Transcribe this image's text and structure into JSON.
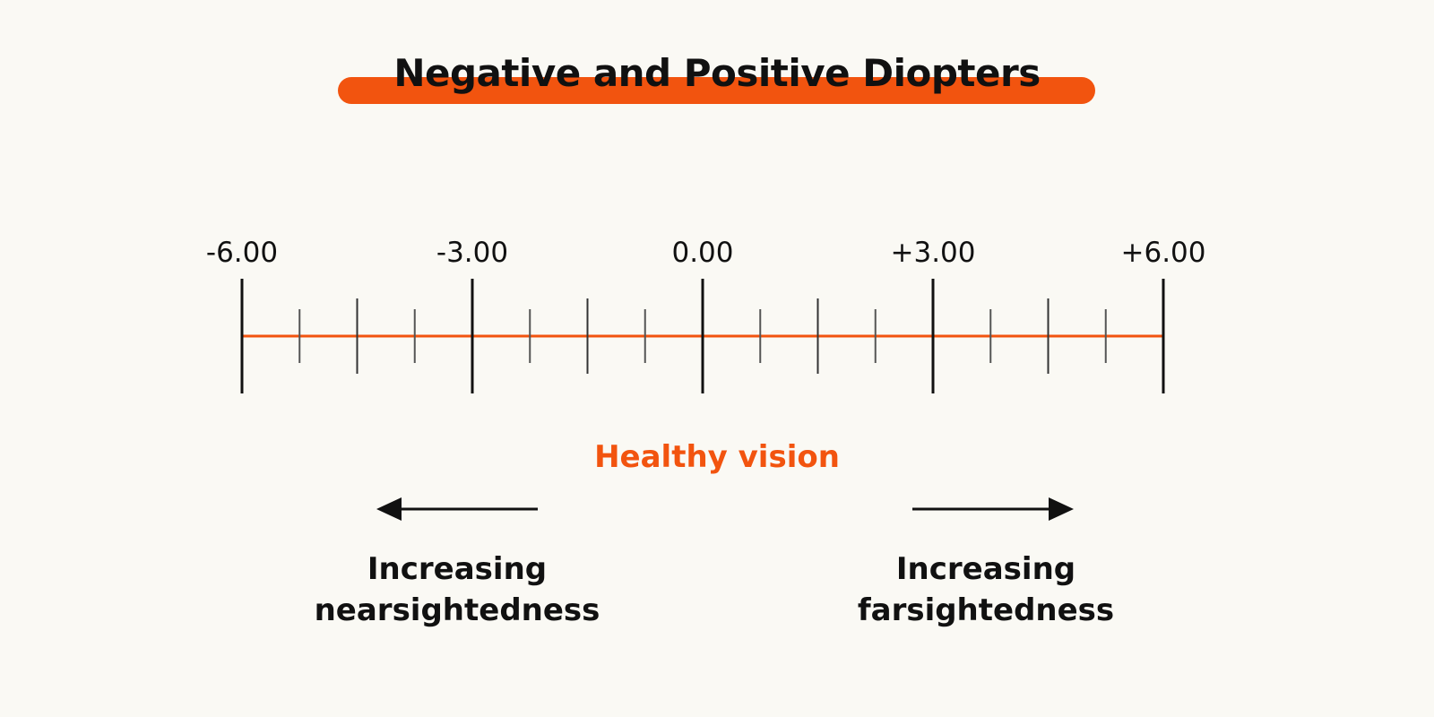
{
  "title": "Negative and Positive Diopters",
  "colors": {
    "accent": "#f2540f",
    "background": "#faf9f4",
    "ink": "#111111",
    "minor_tick": "#555555"
  },
  "scale": {
    "min": -6,
    "max": 6,
    "major_step": 3,
    "minor_step": 0.75,
    "labels": [
      "-6.00",
      "-3.00",
      "0.00",
      "+3.00",
      "+6.00"
    ]
  },
  "center_label": "Healthy vision",
  "left_direction": {
    "line1": "Increasing",
    "line2": "nearsightedness",
    "arrow": "arrow-left-icon"
  },
  "right_direction": {
    "line1": "Increasing",
    "line2": "farsightedness",
    "arrow": "arrow-right-icon"
  }
}
